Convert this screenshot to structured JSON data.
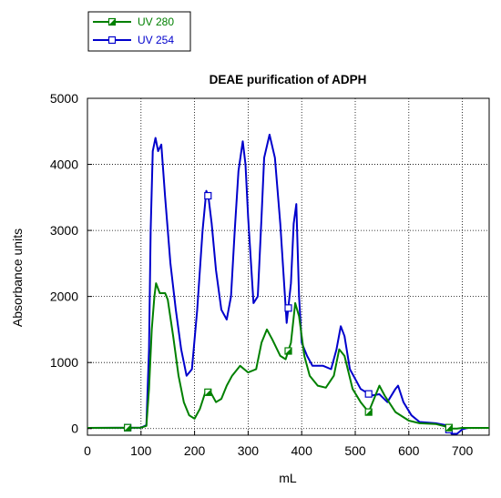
{
  "chart_data": {
    "type": "line",
    "title": "DEAE purification of ADPH",
    "xlabel": "mL",
    "ylabel": "Absorbance units",
    "xlim": [
      0,
      750
    ],
    "ylim": [
      -100,
      5000
    ],
    "xticks": [
      0,
      100,
      200,
      300,
      400,
      500,
      600,
      700
    ],
    "yticks": [
      0,
      1000,
      2000,
      3000,
      4000,
      5000
    ],
    "grid": true,
    "legend_position": "top-left, outside plot",
    "series": [
      {
        "name": "UV 280",
        "color": "#008000",
        "marker": "half-filled square",
        "marker_x": [
          75,
          225,
          375,
          525,
          675
        ],
        "points": [
          [
            0,
            10
          ],
          [
            100,
            15
          ],
          [
            110,
            40
          ],
          [
            115,
            600
          ],
          [
            120,
            1500
          ],
          [
            125,
            2000
          ],
          [
            128,
            2200
          ],
          [
            135,
            2050
          ],
          [
            145,
            2050
          ],
          [
            150,
            1950
          ],
          [
            160,
            1400
          ],
          [
            170,
            800
          ],
          [
            180,
            400
          ],
          [
            190,
            200
          ],
          [
            200,
            150
          ],
          [
            210,
            300
          ],
          [
            220,
            550
          ],
          [
            230,
            550
          ],
          [
            240,
            400
          ],
          [
            250,
            450
          ],
          [
            260,
            650
          ],
          [
            270,
            800
          ],
          [
            285,
            950
          ],
          [
            300,
            850
          ],
          [
            315,
            900
          ],
          [
            325,
            1300
          ],
          [
            335,
            1500
          ],
          [
            345,
            1350
          ],
          [
            360,
            1100
          ],
          [
            370,
            1050
          ],
          [
            380,
            1300
          ],
          [
            388,
            1900
          ],
          [
            395,
            1700
          ],
          [
            405,
            1100
          ],
          [
            415,
            800
          ],
          [
            430,
            650
          ],
          [
            445,
            620
          ],
          [
            460,
            800
          ],
          [
            470,
            1200
          ],
          [
            480,
            1100
          ],
          [
            495,
            600
          ],
          [
            510,
            400
          ],
          [
            525,
            250
          ],
          [
            535,
            450
          ],
          [
            545,
            650
          ],
          [
            555,
            500
          ],
          [
            575,
            250
          ],
          [
            600,
            120
          ],
          [
            620,
            80
          ],
          [
            650,
            70
          ],
          [
            670,
            30
          ],
          [
            680,
            0
          ],
          [
            690,
            0
          ],
          [
            700,
            10
          ],
          [
            750,
            10
          ]
        ]
      },
      {
        "name": "UV 254",
        "color": "#0000cc",
        "marker": "open square",
        "marker_x": [
          75,
          225,
          375,
          525,
          675
        ],
        "points": [
          [
            0,
            10
          ],
          [
            100,
            15
          ],
          [
            110,
            50
          ],
          [
            115,
            1200
          ],
          [
            118,
            3000
          ],
          [
            122,
            4200
          ],
          [
            127,
            4400
          ],
          [
            132,
            4200
          ],
          [
            138,
            4300
          ],
          [
            145,
            3500
          ],
          [
            155,
            2500
          ],
          [
            165,
            1800
          ],
          [
            175,
            1200
          ],
          [
            185,
            800
          ],
          [
            195,
            900
          ],
          [
            205,
            1800
          ],
          [
            215,
            3000
          ],
          [
            222,
            3600
          ],
          [
            226,
            3500
          ],
          [
            232,
            3100
          ],
          [
            240,
            2400
          ],
          [
            250,
            1800
          ],
          [
            260,
            1650
          ],
          [
            268,
            2000
          ],
          [
            275,
            3000
          ],
          [
            282,
            3900
          ],
          [
            290,
            4350
          ],
          [
            295,
            4000
          ],
          [
            300,
            3200
          ],
          [
            310,
            1900
          ],
          [
            318,
            2000
          ],
          [
            325,
            3200
          ],
          [
            330,
            4100
          ],
          [
            340,
            4450
          ],
          [
            350,
            4100
          ],
          [
            360,
            3100
          ],
          [
            372,
            1600
          ],
          [
            380,
            2200
          ],
          [
            385,
            3100
          ],
          [
            390,
            3400
          ],
          [
            395,
            2000
          ],
          [
            400,
            1300
          ],
          [
            410,
            1100
          ],
          [
            420,
            950
          ],
          [
            440,
            950
          ],
          [
            455,
            900
          ],
          [
            465,
            1200
          ],
          [
            473,
            1550
          ],
          [
            480,
            1400
          ],
          [
            490,
            900
          ],
          [
            500,
            750
          ],
          [
            510,
            600
          ],
          [
            520,
            550
          ],
          [
            530,
            500
          ],
          [
            545,
            520
          ],
          [
            560,
            400
          ],
          [
            575,
            600
          ],
          [
            580,
            650
          ],
          [
            590,
            400
          ],
          [
            605,
            200
          ],
          [
            620,
            100
          ],
          [
            650,
            80
          ],
          [
            670,
            50
          ],
          [
            680,
            -80
          ],
          [
            690,
            -80
          ],
          [
            700,
            -10
          ],
          [
            710,
            10
          ],
          [
            750,
            10
          ]
        ]
      }
    ]
  }
}
